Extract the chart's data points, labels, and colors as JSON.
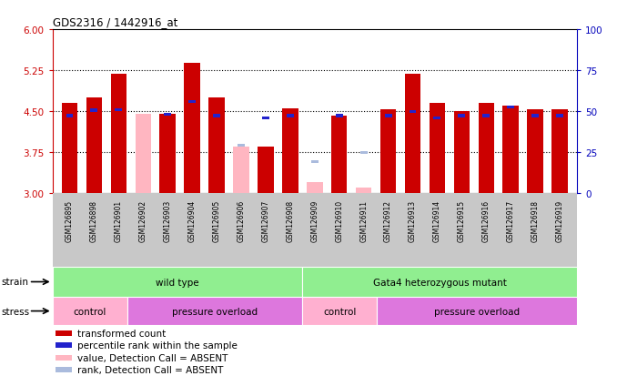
{
  "title": "GDS2316 / 1442916_at",
  "samples": [
    "GSM126895",
    "GSM126898",
    "GSM126901",
    "GSM126902",
    "GSM126903",
    "GSM126904",
    "GSM126905",
    "GSM126906",
    "GSM126907",
    "GSM126908",
    "GSM126909",
    "GSM126910",
    "GSM126911",
    "GSM126912",
    "GSM126913",
    "GSM126914",
    "GSM126915",
    "GSM126916",
    "GSM126917",
    "GSM126918",
    "GSM126919"
  ],
  "red_values": [
    4.65,
    4.75,
    5.18,
    null,
    4.45,
    5.38,
    4.75,
    null,
    3.85,
    4.56,
    null,
    4.42,
    null,
    4.53,
    5.18,
    4.65,
    4.5,
    4.65,
    4.6,
    4.53,
    4.53
  ],
  "pink_values": [
    null,
    null,
    null,
    4.45,
    null,
    null,
    null,
    3.85,
    null,
    null,
    3.2,
    null,
    3.1,
    null,
    null,
    null,
    null,
    null,
    null,
    null,
    null
  ],
  "blue_values": [
    4.42,
    4.52,
    4.53,
    null,
    4.45,
    4.68,
    4.42,
    null,
    4.38,
    4.42,
    null,
    4.42,
    null,
    4.42,
    4.5,
    4.38,
    4.42,
    4.42,
    4.58,
    4.42,
    4.42
  ],
  "lightblue_values": [
    null,
    null,
    null,
    null,
    null,
    null,
    null,
    3.88,
    null,
    null,
    3.58,
    null,
    3.75,
    null,
    null,
    null,
    null,
    null,
    null,
    null,
    null
  ],
  "absent": [
    false,
    false,
    false,
    true,
    false,
    false,
    false,
    true,
    false,
    false,
    true,
    false,
    true,
    false,
    false,
    false,
    false,
    false,
    false,
    false,
    false
  ],
  "ylim_left": [
    3,
    6
  ],
  "ylim_right": [
    0,
    100
  ],
  "yticks_left": [
    3,
    3.75,
    4.5,
    5.25,
    6
  ],
  "yticks_right": [
    0,
    25,
    50,
    75,
    100
  ],
  "strain_groups": [
    {
      "label": "wild type",
      "start": 0,
      "end": 10,
      "color": "#90EE90"
    },
    {
      "label": "Gata4 heterozygous mutant",
      "start": 10,
      "end": 21,
      "color": "#90EE90"
    }
  ],
  "stress_groups": [
    {
      "label": "control",
      "start": 0,
      "end": 3,
      "color": "#FFB0D0"
    },
    {
      "label": "pressure overload",
      "start": 3,
      "end": 10,
      "color": "#DD77DD"
    },
    {
      "label": "control",
      "start": 10,
      "end": 13,
      "color": "#FFB0D0"
    },
    {
      "label": "pressure overload",
      "start": 13,
      "end": 21,
      "color": "#DD77DD"
    }
  ],
  "bar_width": 0.65,
  "red_color": "#CC0000",
  "pink_color": "#FFB6C1",
  "blue_color": "#2222CC",
  "lightblue_color": "#AABBDD",
  "left_axis_color": "#CC0000",
  "right_axis_color": "#0000BB",
  "xtick_bg": "#C8C8C8",
  "legend_items": [
    {
      "color": "#CC0000",
      "label": "transformed count"
    },
    {
      "color": "#2222CC",
      "label": "percentile rank within the sample"
    },
    {
      "color": "#FFB6C1",
      "label": "value, Detection Call = ABSENT"
    },
    {
      "color": "#AABBDD",
      "label": "rank, Detection Call = ABSENT"
    }
  ]
}
